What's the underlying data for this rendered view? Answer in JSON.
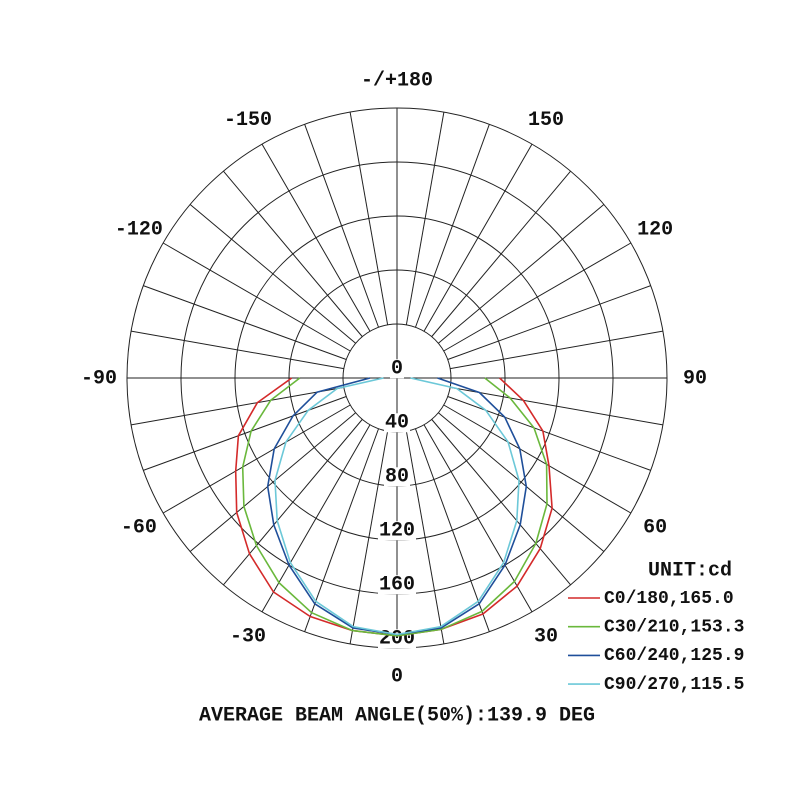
{
  "chart_data": {
    "type": "polar",
    "rlim": [
      0,
      200
    ],
    "rticks": [
      0,
      40,
      80,
      120,
      160,
      200
    ],
    "thetaticks": [
      0,
      30,
      60,
      90,
      120,
      150,
      {
        "value": 180,
        "label": "-/+180"
      },
      -150,
      -120,
      -90,
      -60,
      -30
    ],
    "theta_grid_step": 10,
    "grid": true,
    "legend": "lower right",
    "legend_title": "UNIT:cd",
    "annotation": "AVERAGE BEAM ANGLE(50%):139.9 DEG",
    "x": [
      -90,
      -80,
      -70,
      -60,
      -50,
      -40,
      -30,
      -20,
      -10,
      0,
      10,
      20,
      30,
      40,
      50,
      60,
      70,
      80,
      90
    ],
    "series": [
      {
        "name": "C0/180,165.0",
        "color": "#d42a2a",
        "values": [
          78,
          105,
          125,
          138,
          155,
          170,
          183,
          188,
          190,
          191,
          189,
          186,
          178,
          165,
          150,
          130,
          115,
          95,
          76
        ]
      },
      {
        "name": "C30/210,153.3",
        "color": "#6ab83c",
        "values": [
          72,
          95,
          115,
          132,
          148,
          162,
          175,
          185,
          190,
          191,
          189,
          184,
          174,
          160,
          145,
          128,
          108,
          85,
          65
        ]
      },
      {
        "name": "C60/240,125.9",
        "color": "#1f4f9a",
        "values": [
          20,
          60,
          82,
          105,
          125,
          142,
          160,
          178,
          188,
          190,
          188,
          178,
          160,
          142,
          125,
          105,
          85,
          62,
          30
        ]
      },
      {
        "name": "C90/270,115.5",
        "color": "#6cc8d8",
        "values": [
          10,
          45,
          70,
          95,
          118,
          138,
          158,
          176,
          187,
          190,
          187,
          176,
          158,
          138,
          118,
          95,
          70,
          45,
          10
        ]
      }
    ]
  }
}
